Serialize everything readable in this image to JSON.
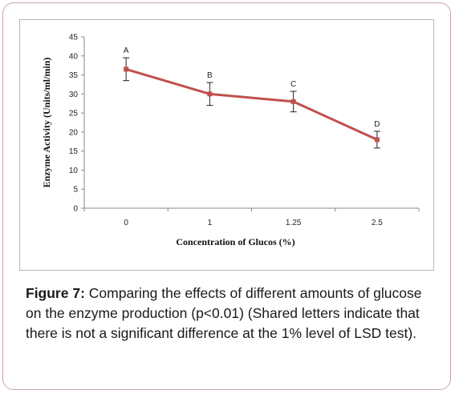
{
  "chart_data": {
    "type": "line",
    "categories": [
      "0",
      "1",
      "1.25",
      "2.5"
    ],
    "series": [
      {
        "values": [
          36.5,
          30,
          28,
          18
        ],
        "errors": [
          3,
          3,
          2.7,
          2.2
        ],
        "letters": [
          "A",
          "B",
          "C",
          "D"
        ],
        "color": "#c0504d"
      }
    ],
    "xlabel": "Concentration  of Glucos (%)",
    "ylabel": "Enzyme Activity (Units/ml/min)",
    "ylim": [
      0,
      45
    ],
    "yticks": [
      "0",
      "5",
      "10",
      "15",
      "20",
      "25",
      "30",
      "35",
      "40",
      "45"
    ],
    "grid": false
  },
  "caption": {
    "label": "Figure 7:",
    "text": " Comparing the effects of different amounts of glucose on the enzyme production (p<0.01) (Shared letters indicate that there is not a significant difference at the 1% level of LSD test)."
  }
}
